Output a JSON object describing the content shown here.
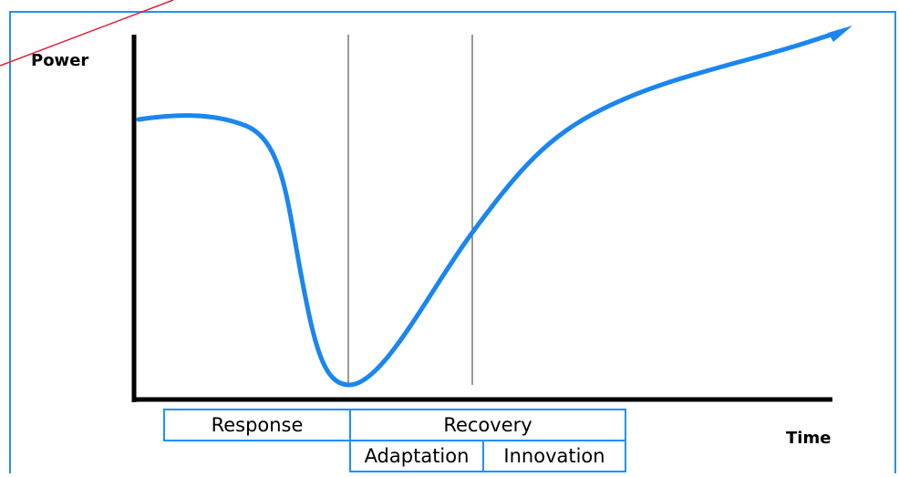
{
  "axes": {
    "y_label": "Power",
    "x_label": "Time"
  },
  "phases": {
    "response": "Response",
    "recovery": "Recovery",
    "adaptation": "Adaptation",
    "innovation": "Innovation"
  }
}
